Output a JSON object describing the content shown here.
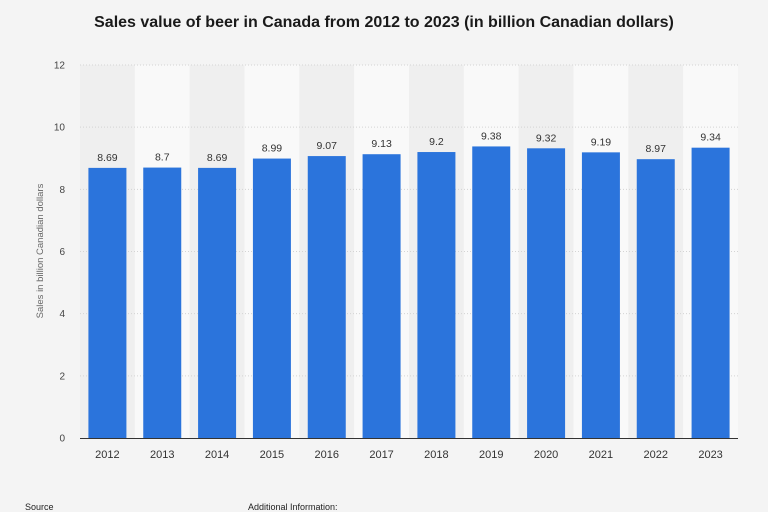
{
  "chart_data": {
    "type": "bar",
    "title": "Sales value of beer in Canada from 2012 to 2023 (in billion Canadian dollars)",
    "xlabel": "",
    "ylabel": "Sales in billion Canadian dollars",
    "categories": [
      "2012",
      "2013",
      "2014",
      "2015",
      "2016",
      "2017",
      "2018",
      "2019",
      "2020",
      "2021",
      "2022",
      "2023"
    ],
    "values": [
      8.69,
      8.7,
      8.69,
      8.99,
      9.07,
      9.13,
      9.2,
      9.38,
      9.32,
      9.19,
      8.97,
      9.34
    ],
    "value_labels": [
      "8.69",
      "8.7",
      "8.69",
      "8.99",
      "9.07",
      "9.13",
      "9.2",
      "9.38",
      "9.32",
      "9.19",
      "8.97",
      "9.34"
    ],
    "ylim": [
      0,
      12
    ],
    "yticks": [
      "0",
      "2",
      "4",
      "6",
      "8",
      "10",
      "12"
    ],
    "grid": true,
    "bar_color": "#2b74dc"
  },
  "footer": {
    "source_label": "Source",
    "additional_label": "Additional Information:"
  }
}
